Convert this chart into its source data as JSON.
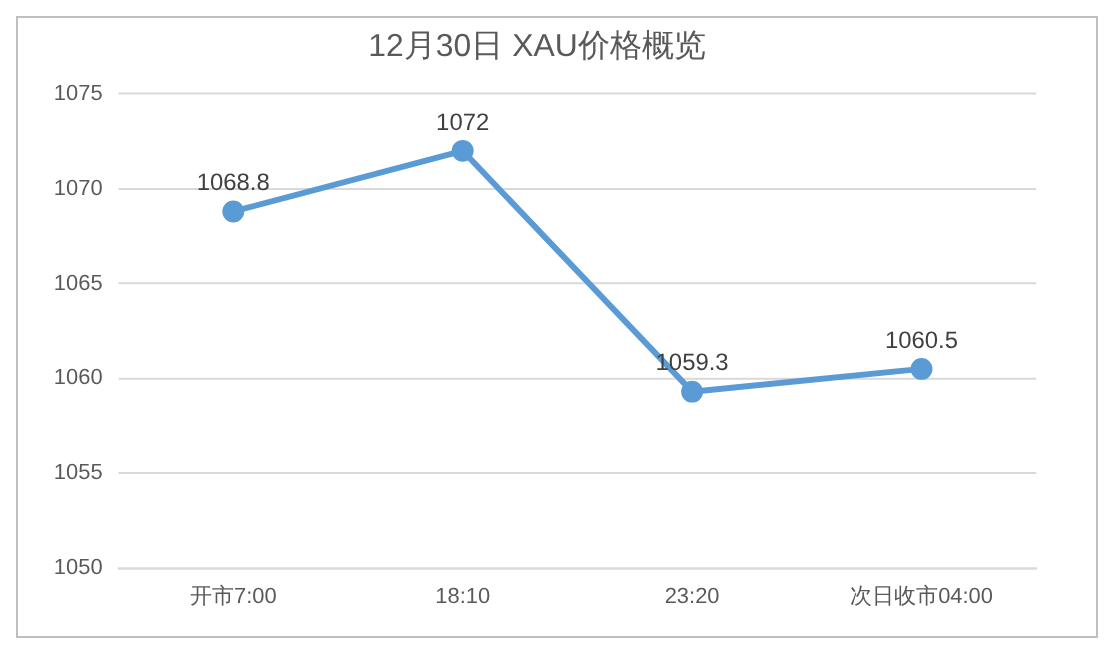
{
  "chart_data": {
    "type": "line",
    "title": "12月30日 XAU价格概览",
    "categories": [
      "开市7:00",
      "18:10",
      "23:20",
      "次日收市04:00"
    ],
    "series": [
      {
        "color": "#5b9bd5",
        "values": [
          1068.8,
          1072,
          1059.3,
          1060.5
        ]
      }
    ],
    "ylim": [
      1050,
      1075
    ],
    "yticks": [
      1050,
      1055,
      1060,
      1065,
      1070,
      1075
    ],
    "grid": "y",
    "data_labels": true,
    "marker": "circle",
    "legend": false
  }
}
